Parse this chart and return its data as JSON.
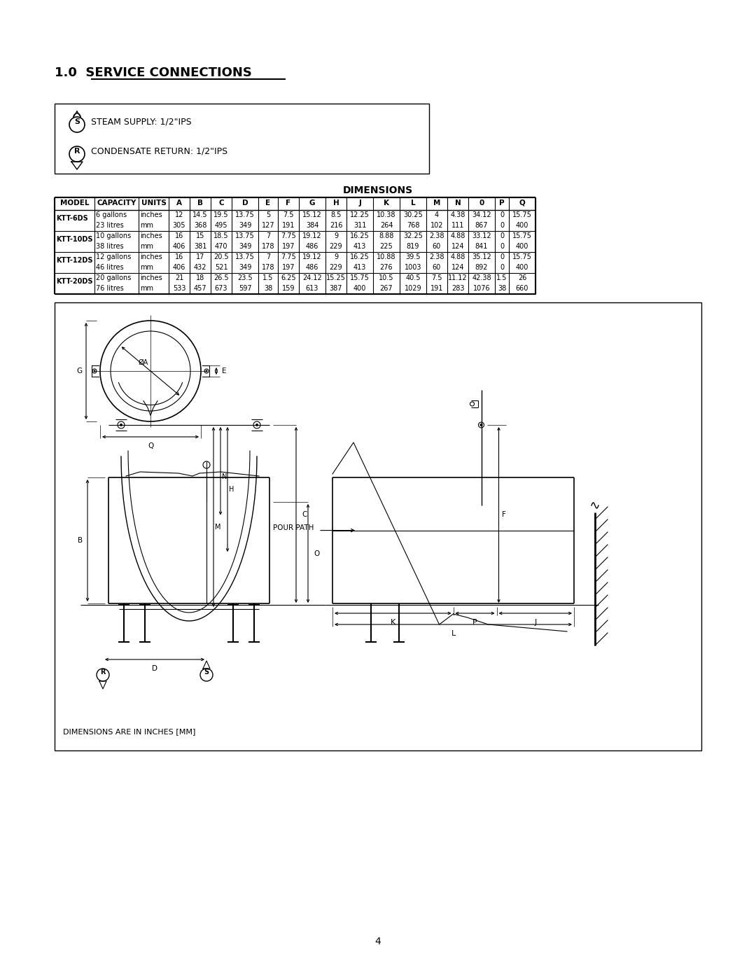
{
  "title_prefix": "1.0  ",
  "title_underlined": "SERVICE CONNECTIONS",
  "steam_supply": "STEAM SUPPLY: 1/2\"IPS",
  "condensate_return": "CONDENSATE RETURN: 1/2\"IPS",
  "dimensions_title": "DIMENSIONS",
  "table_headers": [
    "MODEL",
    "CAPACITY",
    "UNITS",
    "A",
    "B",
    "C",
    "D",
    "E",
    "F",
    "G",
    "H",
    "J",
    "K",
    "L",
    "M",
    "N",
    "0",
    "P",
    "Q"
  ],
  "table_data": [
    [
      "KTT-6DS",
      "6 gallons",
      "inches",
      "12",
      "14.5",
      "19.5",
      "13.75",
      "5",
      "7.5",
      "15.12",
      "8.5",
      "12.25",
      "10.38",
      "30.25",
      "4",
      "4.38",
      "34.12",
      "0",
      "15.75"
    ],
    [
      "",
      "23 litres",
      "mm",
      "305",
      "368",
      "495",
      "349",
      "127",
      "191",
      "384",
      "216",
      "311",
      "264",
      "768",
      "102",
      "111",
      "867",
      "0",
      "400"
    ],
    [
      "KTT-10DS",
      "10 gallons",
      "inches",
      "16",
      "15",
      "18.5",
      "13.75",
      "7",
      "7.75",
      "19.12",
      "9",
      "16.25",
      "8.88",
      "32.25",
      "2.38",
      "4.88",
      "33.12",
      "0",
      "15.75"
    ],
    [
      "",
      "38 litres",
      "mm",
      "406",
      "381",
      "470",
      "349",
      "178",
      "197",
      "486",
      "229",
      "413",
      "225",
      "819",
      "60",
      "124",
      "841",
      "0",
      "400"
    ],
    [
      "KTT-12DS",
      "12 gallons",
      "inches",
      "16",
      "17",
      "20.5",
      "13.75",
      "7",
      "7.75",
      "19.12",
      "9",
      "16.25",
      "10.88",
      "39.5",
      "2.38",
      "4.88",
      "35.12",
      "0",
      "15.75"
    ],
    [
      "",
      "46 litres",
      "mm",
      "406",
      "432",
      "521",
      "349",
      "178",
      "197",
      "486",
      "229",
      "413",
      "276",
      "1003",
      "60",
      "124",
      "892",
      "0",
      "400"
    ],
    [
      "KTT-20DS",
      "20 gallons",
      "inches",
      "21",
      "18",
      "26.5",
      "23.5",
      "1.5",
      "6.25",
      "24.12",
      "15.25",
      "15.75",
      "10.5",
      "40.5",
      "7.5",
      "11.12",
      "42.38",
      "1.5",
      "26"
    ],
    [
      "",
      "76 litres",
      "mm",
      "533",
      "457",
      "673",
      "597",
      "38",
      "159",
      "613",
      "387",
      "400",
      "267",
      "1029",
      "191",
      "283",
      "1076",
      "38",
      "660"
    ]
  ],
  "footer_note": "DIMENSIONS ARE IN INCHES [MM]",
  "page_number": "4"
}
